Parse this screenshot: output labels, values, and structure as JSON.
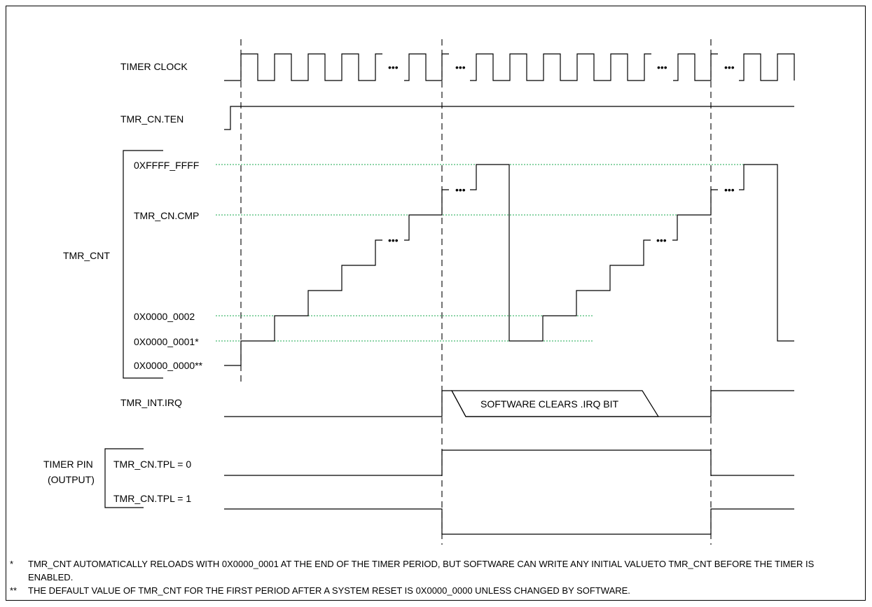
{
  "signals": {
    "timer_clock": "TIMER CLOCK",
    "ten": "TMR_CN.TEN",
    "cnt": "TMR_CNT",
    "irq": "TMR_INT.IRQ",
    "pin_line1": "TIMER PIN",
    "pin_line2": "(OUTPUT)",
    "tpl0": "TMR_CN.TPL = 0",
    "tpl1": "TMR_CN.TPL = 1"
  },
  "levels": {
    "max": "0XFFFF_FFFF",
    "cmp": "TMR_CN.CMP",
    "v2": "0X0000_0002",
    "v1": "0X0000_0001*",
    "v0": "0X0000_0000**"
  },
  "ellipsis": "•••",
  "irq_box_text": "SOFTWARE CLEARS .IRQ BIT",
  "notes": [
    {
      "mark": "*",
      "text": "TMR_CNT AUTOMATICALLY RELOADS WITH 0X0000_0001 AT THE END OF THE TIMER PERIOD, BUT SOFTWARE CAN WRITE ANY INITIAL VALUETO TMR_CNT BEFORE THE TIMER IS ENABLED."
    },
    {
      "mark": "**",
      "text": "THE DEFAULT VALUE OF TMR_CNT FOR THE FIRST PERIOD AFTER A SYSTEM RESET IS 0X0000_0000 UNLESS CHANGED BY SOFTWARE."
    }
  ]
}
